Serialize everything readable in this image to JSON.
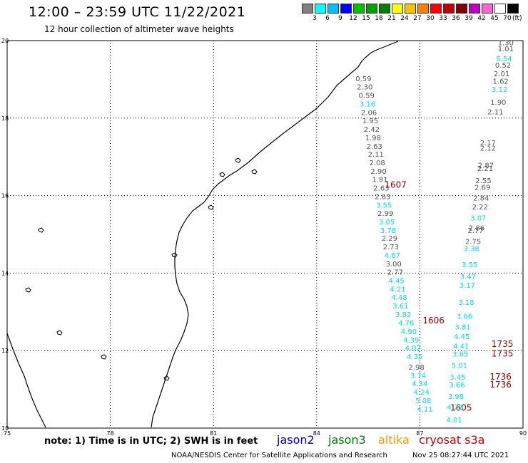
{
  "header": {
    "title": "12:00 – 23:59 UTC 11/22/2021",
    "subtitle": "12 hour collection of altimeter wave heights"
  },
  "legend": {
    "unit": "(ft)",
    "colors": [
      "#808080",
      "#00ffff",
      "#00bfff",
      "#0000ff",
      "#00c000",
      "#00a000",
      "#008000",
      "#ffff00",
      "#ffc000",
      "#ff8000",
      "#ff0000",
      "#c00000",
      "#800000",
      "#c000c0",
      "#ff66cc",
      "#ffffff",
      "#000000"
    ],
    "labels": [
      "3",
      "6",
      "9",
      "12",
      "15",
      "18",
      "21",
      "24",
      "27",
      "30",
      "33",
      "36",
      "39",
      "42",
      "45",
      "70"
    ]
  },
  "map": {
    "lon_range": [
      75,
      90
    ],
    "lat_range": [
      10,
      20
    ],
    "x_ticks": [
      "75",
      "78",
      "81",
      "84",
      "87",
      "90"
    ],
    "y_ticks": [
      "20",
      "18",
      "16",
      "14",
      "12",
      "10"
    ],
    "grid": true
  },
  "tracks": [
    {
      "satellite": "cryosat s3a",
      "pass_label": "1607",
      "label_lon": 86.3,
      "label_lat": 16.2,
      "points": [
        {
          "lon": 85.36,
          "lat": 18.95,
          "v": "0.59",
          "c": "gray"
        },
        {
          "lon": 85.4,
          "lat": 18.74,
          "v": "2.30",
          "c": "gray"
        },
        {
          "lon": 85.45,
          "lat": 18.52,
          "v": "0.59",
          "c": "gray"
        },
        {
          "lon": 85.48,
          "lat": 18.3,
          "v": "3.16",
          "c": "cyan"
        },
        {
          "lon": 85.52,
          "lat": 18.08,
          "v": "2.06",
          "c": "gray"
        },
        {
          "lon": 85.56,
          "lat": 17.87,
          "v": "1.95",
          "c": "gray"
        },
        {
          "lon": 85.6,
          "lat": 17.65,
          "v": "2.42",
          "c": "gray"
        },
        {
          "lon": 85.64,
          "lat": 17.43,
          "v": "1.98",
          "c": "gray"
        },
        {
          "lon": 85.68,
          "lat": 17.21,
          "v": "2.63",
          "c": "gray"
        },
        {
          "lon": 85.72,
          "lat": 17.0,
          "v": "2.11",
          "c": "gray"
        },
        {
          "lon": 85.76,
          "lat": 16.78,
          "v": "2.08",
          "c": "gray"
        },
        {
          "lon": 85.8,
          "lat": 16.56,
          "v": "2.90",
          "c": "gray"
        },
        {
          "lon": 85.84,
          "lat": 16.35,
          "v": "1.81",
          "c": "gray"
        },
        {
          "lon": 85.88,
          "lat": 16.13,
          "v": "2.63",
          "c": "gray"
        },
        {
          "lon": 85.92,
          "lat": 15.91,
          "v": "2.63",
          "c": "gray"
        },
        {
          "lon": 85.96,
          "lat": 15.69,
          "v": "3.55",
          "c": "cyan"
        },
        {
          "lon": 86.0,
          "lat": 15.48,
          "v": "2.99",
          "c": "gray"
        },
        {
          "lon": 86.04,
          "lat": 15.26,
          "v": "3.05",
          "c": "cyan"
        },
        {
          "lon": 86.08,
          "lat": 15.04,
          "v": "3.78",
          "c": "cyan"
        },
        {
          "lon": 86.12,
          "lat": 14.83,
          "v": "2.29",
          "c": "gray"
        },
        {
          "lon": 86.16,
          "lat": 14.61,
          "v": "2.73",
          "c": "gray"
        },
        {
          "lon": 86.2,
          "lat": 14.39,
          "v": "4.67",
          "c": "cyan"
        },
        {
          "lon": 86.24,
          "lat": 14.17,
          "v": "3.00",
          "c": "gray"
        },
        {
          "lon": 86.28,
          "lat": 13.96,
          "v": "2.77",
          "c": "gray"
        },
        {
          "lon": 86.32,
          "lat": 13.74,
          "v": "4.45",
          "c": "cyan"
        },
        {
          "lon": 86.36,
          "lat": 13.52,
          "v": "4.21",
          "c": "cyan"
        },
        {
          "lon": 86.4,
          "lat": 13.31,
          "v": "4.48",
          "c": "cyan"
        },
        {
          "lon": 86.44,
          "lat": 13.09,
          "v": "3.61",
          "c": "cyan"
        }
      ]
    },
    {
      "satellite": "cryosat s3a",
      "pass_label": "1606",
      "label_lon": 87.4,
      "label_lat": 12.7,
      "points": [
        {
          "lon": 86.52,
          "lat": 12.87,
          "v": "3.82",
          "c": "cyan"
        },
        {
          "lon": 86.6,
          "lat": 12.65,
          "v": "4.76",
          "c": "cyan"
        },
        {
          "lon": 86.68,
          "lat": 12.43,
          "v": "4.90",
          "c": "cyan"
        },
        {
          "lon": 86.75,
          "lat": 12.21,
          "v": "4.39",
          "c": "cyan"
        },
        {
          "lon": 86.8,
          "lat": 12.0,
          "v": "4.02",
          "c": "cyan"
        },
        {
          "lon": 86.85,
          "lat": 11.78,
          "v": "4.35",
          "c": "cyan"
        },
        {
          "lon": 86.9,
          "lat": 11.51,
          "v": "2.98",
          "c": "gray"
        },
        {
          "lon": 86.95,
          "lat": 11.3,
          "v": "3.74",
          "c": "cyan"
        },
        {
          "lon": 87.0,
          "lat": 11.08,
          "v": "4.34",
          "c": "cyan"
        },
        {
          "lon": 87.05,
          "lat": 10.86,
          "v": "4.24",
          "c": "cyan"
        },
        {
          "lon": 87.1,
          "lat": 10.64,
          "v": "5.08",
          "c": "cyan"
        },
        {
          "lon": 87.15,
          "lat": 10.42,
          "v": "4.11",
          "c": "cyan"
        }
      ]
    },
    {
      "satellite": "cryosat s3a",
      "pass_label": "1605",
      "label_lon": 88.2,
      "label_lat": 10.45,
      "points": []
    },
    {
      "satellite": "cryosat s3a",
      "pass_label": "",
      "label_lon": 0,
      "label_lat": 0,
      "points": [
        {
          "lon": 89.5,
          "lat": 19.88,
          "v": "1.30",
          "c": "gray"
        },
        {
          "lon": 89.5,
          "lat": 19.72,
          "v": "1.01",
          "c": "gray"
        },
        {
          "lon": 89.45,
          "lat": 19.47,
          "v": "5.54",
          "c": "cyan"
        },
        {
          "lon": 89.42,
          "lat": 19.3,
          "v": "0.52",
          "c": "gray"
        },
        {
          "lon": 89.38,
          "lat": 19.08,
          "v": "2.01",
          "c": "gray"
        },
        {
          "lon": 89.35,
          "lat": 18.89,
          "v": "1.62",
          "c": "gray"
        },
        {
          "lon": 89.32,
          "lat": 18.68,
          "v": "3.12",
          "c": "cyan"
        },
        {
          "lon": 89.28,
          "lat": 18.35,
          "v": "1.90",
          "c": "gray"
        },
        {
          "lon": 89.2,
          "lat": 18.1,
          "v": "2.11",
          "c": "gray"
        },
        {
          "lon": 88.98,
          "lat": 17.3,
          "v": "2.17",
          "c": "gray"
        },
        {
          "lon": 88.98,
          "lat": 17.16,
          "v": "2.12",
          "c": "gray"
        },
        {
          "lon": 88.92,
          "lat": 16.72,
          "v": "2.87",
          "c": "gray"
        },
        {
          "lon": 88.9,
          "lat": 16.64,
          "v": "2.21",
          "c": "gray"
        },
        {
          "lon": 88.85,
          "lat": 16.32,
          "v": "2.55",
          "c": "gray"
        },
        {
          "lon": 88.82,
          "lat": 16.15,
          "v": "2.69",
          "c": "gray"
        },
        {
          "lon": 88.78,
          "lat": 15.87,
          "v": "2.84",
          "c": "gray"
        },
        {
          "lon": 88.75,
          "lat": 15.64,
          "v": "2.22",
          "c": "gray"
        },
        {
          "lon": 88.7,
          "lat": 15.36,
          "v": "3.07",
          "c": "cyan"
        },
        {
          "lon": 88.65,
          "lat": 15.1,
          "v": "2.86",
          "c": "gray"
        },
        {
          "lon": 88.62,
          "lat": 15.04,
          "v": "2.77",
          "c": "gray"
        },
        {
          "lon": 88.55,
          "lat": 14.75,
          "v": "2.75",
          "c": "gray"
        },
        {
          "lon": 88.5,
          "lat": 14.57,
          "v": "3.38",
          "c": "cyan"
        },
        {
          "lon": 88.45,
          "lat": 14.15,
          "v": "3.55",
          "c": "cyan"
        },
        {
          "lon": 88.4,
          "lat": 13.85,
          "v": "3.47",
          "c": "cyan"
        },
        {
          "lon": 88.38,
          "lat": 13.62,
          "v": "3.17",
          "c": "cyan"
        },
        {
          "lon": 88.35,
          "lat": 13.18,
          "v": "3.18",
          "c": "cyan"
        },
        {
          "lon": 88.3,
          "lat": 12.82,
          "v": "3.66",
          "c": "cyan"
        },
        {
          "lon": 88.25,
          "lat": 12.55,
          "v": "3.81",
          "c": "cyan"
        },
        {
          "lon": 88.22,
          "lat": 12.3,
          "v": "4.45",
          "c": "cyan"
        },
        {
          "lon": 88.2,
          "lat": 12.05,
          "v": "4.41",
          "c": "cyan"
        },
        {
          "lon": 88.18,
          "lat": 11.85,
          "v": "3.65",
          "c": "cyan"
        },
        {
          "lon": 88.15,
          "lat": 11.55,
          "v": "5.01",
          "c": "cyan"
        },
        {
          "lon": 88.1,
          "lat": 11.25,
          "v": "3.45",
          "c": "cyan"
        },
        {
          "lon": 88.08,
          "lat": 11.05,
          "v": "3.66",
          "c": "cyan"
        },
        {
          "lon": 88.05,
          "lat": 10.75,
          "v": "3.98",
          "c": "cyan"
        },
        {
          "lon": 88.02,
          "lat": 10.48,
          "v": "4.28",
          "c": "cyan"
        },
        {
          "lon": 88.0,
          "lat": 10.15,
          "v": "4.01",
          "c": "cyan"
        }
      ]
    },
    {
      "satellite": "cryosat s3a",
      "pass_label": "1735",
      "label_lon": 89.4,
      "label_lat": 12.1,
      "points": []
    },
    {
      "satellite": "cryosat s3a",
      "pass_label": "1735",
      "label_lon": 89.4,
      "label_lat": 11.85,
      "points": []
    },
    {
      "satellite": "cryosat s3a",
      "pass_label": "1736",
      "label_lon": 89.35,
      "label_lat": 11.25,
      "points": []
    },
    {
      "satellite": "cryosat s3a",
      "pass_label": "1736",
      "label_lon": 89.35,
      "label_lat": 11.05,
      "points": []
    }
  ],
  "footer": {
    "note": "note:  1) Time is in UTC;  2) SWH is in feet",
    "satellites": [
      {
        "name": "jason2",
        "color": "#0000cc"
      },
      {
        "name": "jason3",
        "color": "#008000"
      },
      {
        "name": "altika",
        "color": "#ff9900"
      },
      {
        "name": "cryosat s3a",
        "color": "#cc0000"
      }
    ],
    "credit": "NOAA/NESDIS Center for Satellite Applications and Research",
    "timestamp": "Nov 25 08:27:44 UTC 2021"
  }
}
